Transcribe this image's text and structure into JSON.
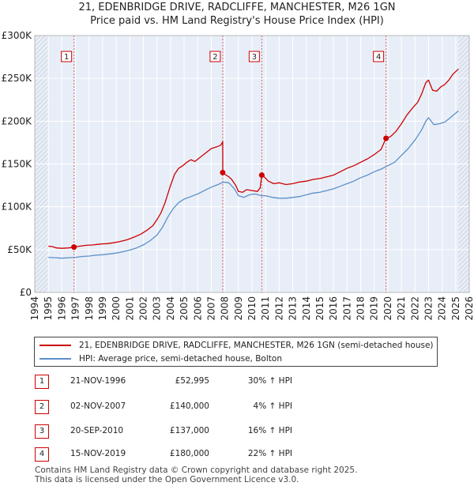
{
  "chart_data": {
    "type": "line",
    "title": "21, EDENBRIDGE DRIVE, RADCLIFFE, MANCHESTER, M26 1GN",
    "subtitle": "Price paid vs. HM Land Registry's House Price Index (HPI)",
    "xlim": [
      1994.0,
      2026.0
    ],
    "ylim": [
      0,
      300000
    ],
    "ytick_values": [
      0,
      50000,
      100000,
      150000,
      200000,
      250000,
      300000
    ],
    "ytick_labels": [
      "£0",
      "£50K",
      "£100K",
      "£150K",
      "£200K",
      "£250K",
      "£300K"
    ],
    "xtick_values": [
      1994,
      1995,
      1996,
      1997,
      1998,
      1999,
      2000,
      2001,
      2002,
      2003,
      2004,
      2005,
      2006,
      2007,
      2008,
      2009,
      2010,
      2011,
      2012,
      2013,
      2014,
      2015,
      2016,
      2017,
      2018,
      2019,
      2020,
      2021,
      2022,
      2023,
      2024,
      2025,
      2026
    ],
    "xtick_labels": [
      "1994",
      "1995",
      "1996",
      "1997",
      "1998",
      "1999",
      "2000",
      "2001",
      "2002",
      "2003",
      "2004",
      "2005",
      "2006",
      "2007",
      "2008",
      "2009",
      "2010",
      "2011",
      "2012",
      "2013",
      "2014",
      "2015",
      "2016",
      "2017",
      "2018",
      "2019",
      "2020",
      "2021",
      "2022",
      "2023",
      "2024",
      "2025",
      "2026"
    ],
    "data_range_x": [
      1995.0,
      2025.2
    ],
    "series": [
      {
        "name": "21, EDENBRIDGE DRIVE, RADCLIFFE, MANCHESTER, M26 1GN (semi-detached house)",
        "color": "#cc0000",
        "points": [
          [
            1995.0,
            54000
          ],
          [
            1995.3,
            53500
          ],
          [
            1995.6,
            52000
          ],
          [
            1996.0,
            51500
          ],
          [
            1996.5,
            52000
          ],
          [
            1996.9,
            52995
          ],
          [
            1997.3,
            54000
          ],
          [
            1997.8,
            55000
          ],
          [
            1998.3,
            55500
          ],
          [
            1998.8,
            56500
          ],
          [
            1999.3,
            57000
          ],
          [
            1999.8,
            58000
          ],
          [
            2000.3,
            59500
          ],
          [
            2000.8,
            61500
          ],
          [
            2001.3,
            64500
          ],
          [
            2001.8,
            68000
          ],
          [
            2002.3,
            73000
          ],
          [
            2002.7,
            78000
          ],
          [
            2003.0,
            85000
          ],
          [
            2003.3,
            93000
          ],
          [
            2003.6,
            105000
          ],
          [
            2003.8,
            115000
          ],
          [
            2004.0,
            125000
          ],
          [
            2004.3,
            138000
          ],
          [
            2004.6,
            145000
          ],
          [
            2004.9,
            148000
          ],
          [
            2005.2,
            152000
          ],
          [
            2005.5,
            155000
          ],
          [
            2005.8,
            153000
          ],
          [
            2006.2,
            158000
          ],
          [
            2006.6,
            163000
          ],
          [
            2007.0,
            168000
          ],
          [
            2007.4,
            170000
          ],
          [
            2007.7,
            172000
          ],
          [
            2007.84,
            176000
          ],
          [
            2007.85,
            140000
          ],
          [
            2008.0,
            138000
          ],
          [
            2008.3,
            135000
          ],
          [
            2008.5,
            132000
          ],
          [
            2008.8,
            125000
          ],
          [
            2009.0,
            118000
          ],
          [
            2009.3,
            117000
          ],
          [
            2009.6,
            120000
          ],
          [
            2010.0,
            119000
          ],
          [
            2010.4,
            118000
          ],
          [
            2010.6,
            122000
          ],
          [
            2010.72,
            137000
          ],
          [
            2010.9,
            135000
          ],
          [
            2011.2,
            130000
          ],
          [
            2011.6,
            127000
          ],
          [
            2012.0,
            128000
          ],
          [
            2012.5,
            126000
          ],
          [
            2013.0,
            127000
          ],
          [
            2013.5,
            129000
          ],
          [
            2014.0,
            130000
          ],
          [
            2014.5,
            132000
          ],
          [
            2015.0,
            133000
          ],
          [
            2015.5,
            135000
          ],
          [
            2016.0,
            137000
          ],
          [
            2016.5,
            141000
          ],
          [
            2017.0,
            145000
          ],
          [
            2017.5,
            148000
          ],
          [
            2018.0,
            152000
          ],
          [
            2018.5,
            156000
          ],
          [
            2019.0,
            161000
          ],
          [
            2019.5,
            167000
          ],
          [
            2019.87,
            180000
          ],
          [
            2020.2,
            182000
          ],
          [
            2020.6,
            188000
          ],
          [
            2021.0,
            197000
          ],
          [
            2021.4,
            207000
          ],
          [
            2021.8,
            215000
          ],
          [
            2022.2,
            222000
          ],
          [
            2022.5,
            232000
          ],
          [
            2022.8,
            245000
          ],
          [
            2023.0,
            248000
          ],
          [
            2023.3,
            236000
          ],
          [
            2023.6,
            235000
          ],
          [
            2023.9,
            240000
          ],
          [
            2024.2,
            243000
          ],
          [
            2024.5,
            248000
          ],
          [
            2024.8,
            255000
          ],
          [
            2025.2,
            261000
          ]
        ]
      },
      {
        "name": "HPI: Average price, semi-detached house, Bolton",
        "color": "#5b8fc9",
        "points": [
          [
            1995.0,
            41000
          ],
          [
            1995.5,
            40500
          ],
          [
            1996.0,
            40000
          ],
          [
            1996.5,
            40500
          ],
          [
            1997.0,
            41000
          ],
          [
            1997.5,
            42000
          ],
          [
            1998.0,
            42500
          ],
          [
            1998.5,
            43500
          ],
          [
            1999.0,
            44000
          ],
          [
            1999.5,
            45000
          ],
          [
            2000.0,
            46000
          ],
          [
            2000.5,
            47500
          ],
          [
            2001.0,
            49500
          ],
          [
            2001.5,
            52000
          ],
          [
            2002.0,
            55500
          ],
          [
            2002.5,
            60500
          ],
          [
            2003.0,
            67000
          ],
          [
            2003.4,
            76000
          ],
          [
            2003.8,
            88000
          ],
          [
            2004.2,
            98000
          ],
          [
            2004.6,
            105000
          ],
          [
            2005.0,
            109000
          ],
          [
            2005.5,
            112000
          ],
          [
            2006.0,
            115000
          ],
          [
            2006.5,
            119000
          ],
          [
            2007.0,
            123000
          ],
          [
            2007.5,
            126000
          ],
          [
            2007.9,
            129000
          ],
          [
            2008.3,
            128000
          ],
          [
            2008.7,
            121000
          ],
          [
            2009.0,
            113000
          ],
          [
            2009.4,
            111000
          ],
          [
            2009.8,
            114000
          ],
          [
            2010.2,
            115000
          ],
          [
            2010.7,
            113000
          ],
          [
            2011.0,
            113000
          ],
          [
            2011.5,
            111000
          ],
          [
            2012.0,
            110000
          ],
          [
            2012.5,
            110000
          ],
          [
            2013.0,
            111000
          ],
          [
            2013.5,
            112000
          ],
          [
            2014.0,
            114000
          ],
          [
            2014.5,
            116000
          ],
          [
            2015.0,
            117000
          ],
          [
            2015.5,
            119000
          ],
          [
            2016.0,
            121000
          ],
          [
            2016.5,
            124000
          ],
          [
            2017.0,
            127000
          ],
          [
            2017.5,
            130000
          ],
          [
            2018.0,
            134000
          ],
          [
            2018.5,
            137000
          ],
          [
            2019.0,
            141000
          ],
          [
            2019.5,
            144000
          ],
          [
            2020.0,
            148000
          ],
          [
            2020.5,
            152000
          ],
          [
            2021.0,
            160000
          ],
          [
            2021.5,
            168000
          ],
          [
            2022.0,
            178000
          ],
          [
            2022.5,
            190000
          ],
          [
            2022.8,
            200000
          ],
          [
            2023.0,
            204000
          ],
          [
            2023.4,
            196000
          ],
          [
            2023.8,
            197000
          ],
          [
            2024.2,
            199000
          ],
          [
            2024.6,
            204000
          ],
          [
            2025.2,
            212000
          ]
        ]
      }
    ],
    "sale_markers": [
      {
        "label": "1",
        "x": 1996.89,
        "y": 52995
      },
      {
        "label": "2",
        "x": 2007.84,
        "y": 140000
      },
      {
        "label": "3",
        "x": 2010.72,
        "y": 137000
      },
      {
        "label": "4",
        "x": 2019.87,
        "y": 180000
      }
    ],
    "legend_position": "below-chart"
  },
  "legend": {
    "items": [
      {
        "label": "21, EDENBRIDGE DRIVE, RADCLIFFE, MANCHESTER, M26 1GN (semi-detached house)",
        "color": "#cc0000"
      },
      {
        "label": "HPI: Average price, semi-detached house, Bolton",
        "color": "#5b8fc9"
      }
    ]
  },
  "sales": [
    {
      "number": "1",
      "date": "21-NOV-1996",
      "price": "£52,995",
      "hpi": "30% ↑ HPI"
    },
    {
      "number": "2",
      "date": "02-NOV-2007",
      "price": "£140,000",
      "hpi": "4% ↑ HPI"
    },
    {
      "number": "3",
      "date": "20-SEP-2010",
      "price": "£137,000",
      "hpi": "16% ↑ HPI"
    },
    {
      "number": "4",
      "date": "15-NOV-2019",
      "price": "£180,000",
      "hpi": "22% ↑ HPI"
    }
  ],
  "footer": {
    "line1": "Contains HM Land Registry data © Crown copyright and database right 2025.",
    "line2": "This data is licensed under the Open Government Licence v3.0."
  },
  "colors": {
    "plot_bg": "#e8eef8",
    "grid": "#ffffff",
    "sale_line": "#e06666",
    "property": "#cc0000",
    "hpi": "#5b8fc9"
  }
}
